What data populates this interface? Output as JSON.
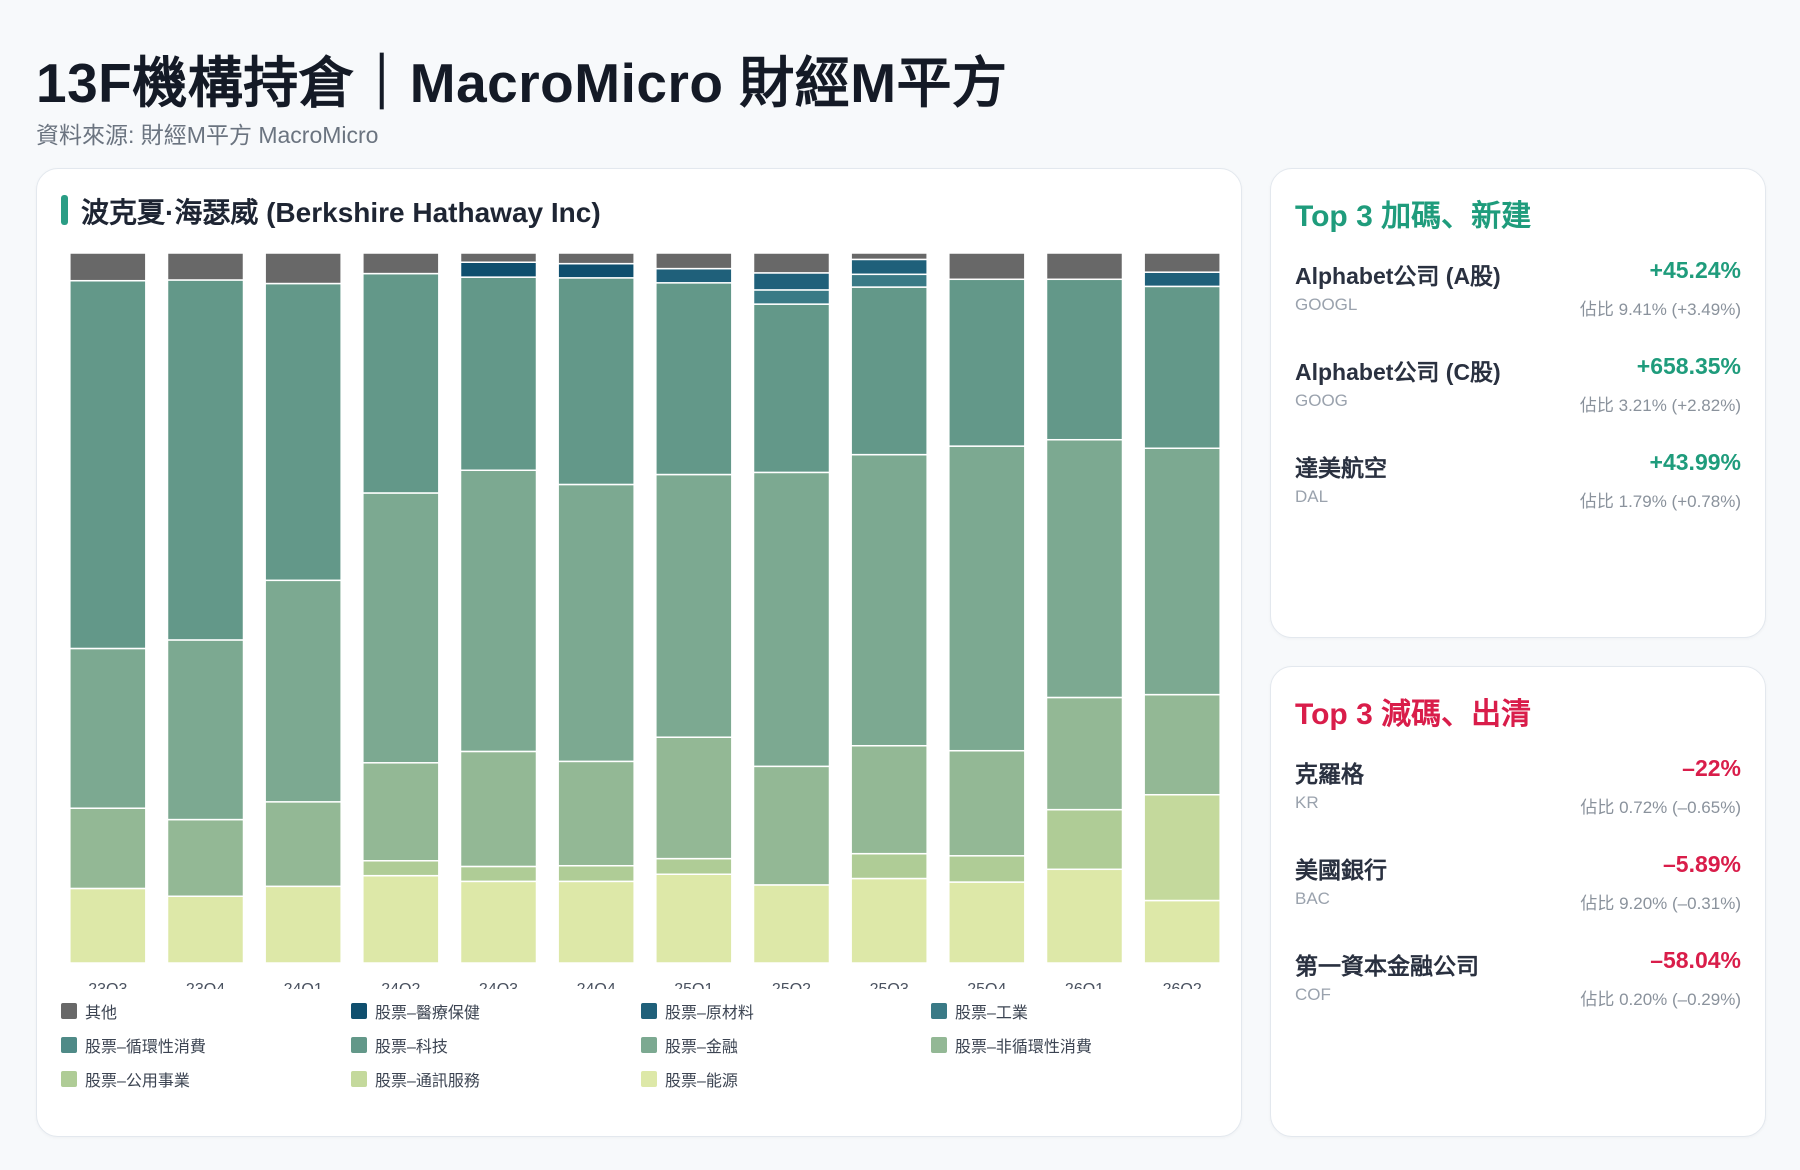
{
  "header": {
    "title": "13F機構持倉｜MacroMicro 財經M平方",
    "subtitle": "資料來源: 財經M平方 MacroMicro"
  },
  "chart_panel": {
    "title": "波克夏·海瑟威 (Berkshire Hathaway Inc)",
    "accent_color": "#2a9d85"
  },
  "chart_data": {
    "type": "bar",
    "stacked": true,
    "normalized": true,
    "categories": [
      "23Q3",
      "23Q4",
      "24Q1",
      "24Q2",
      "24Q3",
      "24Q4",
      "25Q1",
      "25Q2",
      "25Q3",
      "25Q4",
      "26Q1",
      "26Q2"
    ],
    "ylim": [
      0,
      100
    ],
    "series": [
      {
        "name": "股票–能源",
        "color": "#dde8a8",
        "values": [
          10.5,
          9.4,
          10.8,
          12.3,
          11.5,
          11.5,
          12.5,
          11.0,
          11.9,
          11.4,
          13.2,
          8.8
        ]
      },
      {
        "name": "股票–通訊服務",
        "color": "#c4d99c",
        "values": [
          0,
          0,
          0,
          0,
          0,
          0,
          0,
          0,
          0,
          0,
          0,
          14.9
        ]
      },
      {
        "name": "股票–公用事業",
        "color": "#afcc96",
        "values": [
          0,
          0,
          0,
          2.1,
          2.1,
          2.2,
          2.2,
          0,
          3.5,
          3.7,
          8.4,
          0
        ]
      },
      {
        "name": "股票–非循環性消費",
        "color": "#93b895",
        "values": [
          11.3,
          10.8,
          11.9,
          13.8,
          16.2,
          14.7,
          17.1,
          16.7,
          15.2,
          14.8,
          15.8,
          14.1
        ]
      },
      {
        "name": "股票–金融",
        "color": "#7ca991",
        "values": [
          22.5,
          25.3,
          31.2,
          38.0,
          39.6,
          39.0,
          37.0,
          41.4,
          41.0,
          42.9,
          36.3,
          34.7
        ]
      },
      {
        "name": "股票–科技",
        "color": "#639889",
        "values": [
          51.8,
          50.7,
          41.8,
          30.9,
          27.2,
          29.1,
          27.0,
          23.7,
          23.6,
          23.5,
          22.6,
          22.8
        ]
      },
      {
        "name": "股票–循環性消費",
        "color": "#4f8a87",
        "values": [
          0,
          0,
          0,
          0,
          0,
          0,
          0,
          0,
          0,
          0,
          0,
          0
        ]
      },
      {
        "name": "股票–工業",
        "color": "#3a7a86",
        "values": [
          0,
          0,
          0,
          0,
          0,
          0,
          0,
          2.0,
          1.8,
          0,
          0,
          0
        ]
      },
      {
        "name": "股票–原材料",
        "color": "#1f607a",
        "values": [
          0,
          0,
          0,
          0,
          0,
          0,
          2.0,
          2.4,
          2.1,
          0,
          0,
          2.0
        ]
      },
      {
        "name": "股票–醫療保健",
        "color": "#0f4f6e",
        "values": [
          0,
          0,
          0,
          0,
          2.1,
          2.0,
          0,
          0,
          0,
          0,
          0,
          0
        ]
      },
      {
        "name": "其他",
        "color": "#686868",
        "values": [
          3.9,
          3.8,
          4.3,
          2.9,
          1.3,
          1.5,
          2.2,
          2.8,
          0.9,
          3.7,
          3.7,
          2.7
        ]
      }
    ]
  },
  "legend": [
    {
      "label": "其他",
      "color": "#686868"
    },
    {
      "label": "股票–醫療保健",
      "color": "#0f4f6e"
    },
    {
      "label": "股票–原材料",
      "color": "#1f607a"
    },
    {
      "label": "股票–工業",
      "color": "#3a7a86"
    },
    {
      "label": "股票–循環性消費",
      "color": "#4f8a87"
    },
    {
      "label": "股票–科技",
      "color": "#639889"
    },
    {
      "label": "股票–金融",
      "color": "#7ca991"
    },
    {
      "label": "股票–非循環性消費",
      "color": "#93b895"
    },
    {
      "label": "股票–公用事業",
      "color": "#afcc96"
    },
    {
      "label": "股票–通訊服務",
      "color": "#c4d99c"
    },
    {
      "label": "股票–能源",
      "color": "#dde8a8"
    }
  ],
  "top_add": {
    "title": "Top 3 加碼、新建",
    "color": "#1f9c7c",
    "items": [
      {
        "name": "Alphabet公司 (A股)",
        "ticker": "GOOGL",
        "change": "+45.24%",
        "weight": "佔比 9.41% (+3.49%)"
      },
      {
        "name": "Alphabet公司 (C股)",
        "ticker": "GOOG",
        "change": "+658.35%",
        "weight": "佔比 3.21% (+2.82%)"
      },
      {
        "name": "達美航空",
        "ticker": "DAL",
        "change": "+43.99%",
        "weight": "佔比 1.79% (+0.78%)"
      }
    ]
  },
  "top_cut": {
    "title": "Top 3 減碼、出清",
    "color": "#d91d4a",
    "items": [
      {
        "name": "克羅格",
        "ticker": "KR",
        "change": "–22%",
        "weight": "佔比 0.72% (–0.65%)"
      },
      {
        "name": "美國銀行",
        "ticker": "BAC",
        "change": "–5.89%",
        "weight": "佔比 9.20% (–0.31%)"
      },
      {
        "name": "第一資本金融公司",
        "ticker": "COF",
        "change": "–58.04%",
        "weight": "佔比 0.20% (–0.29%)"
      }
    ]
  }
}
